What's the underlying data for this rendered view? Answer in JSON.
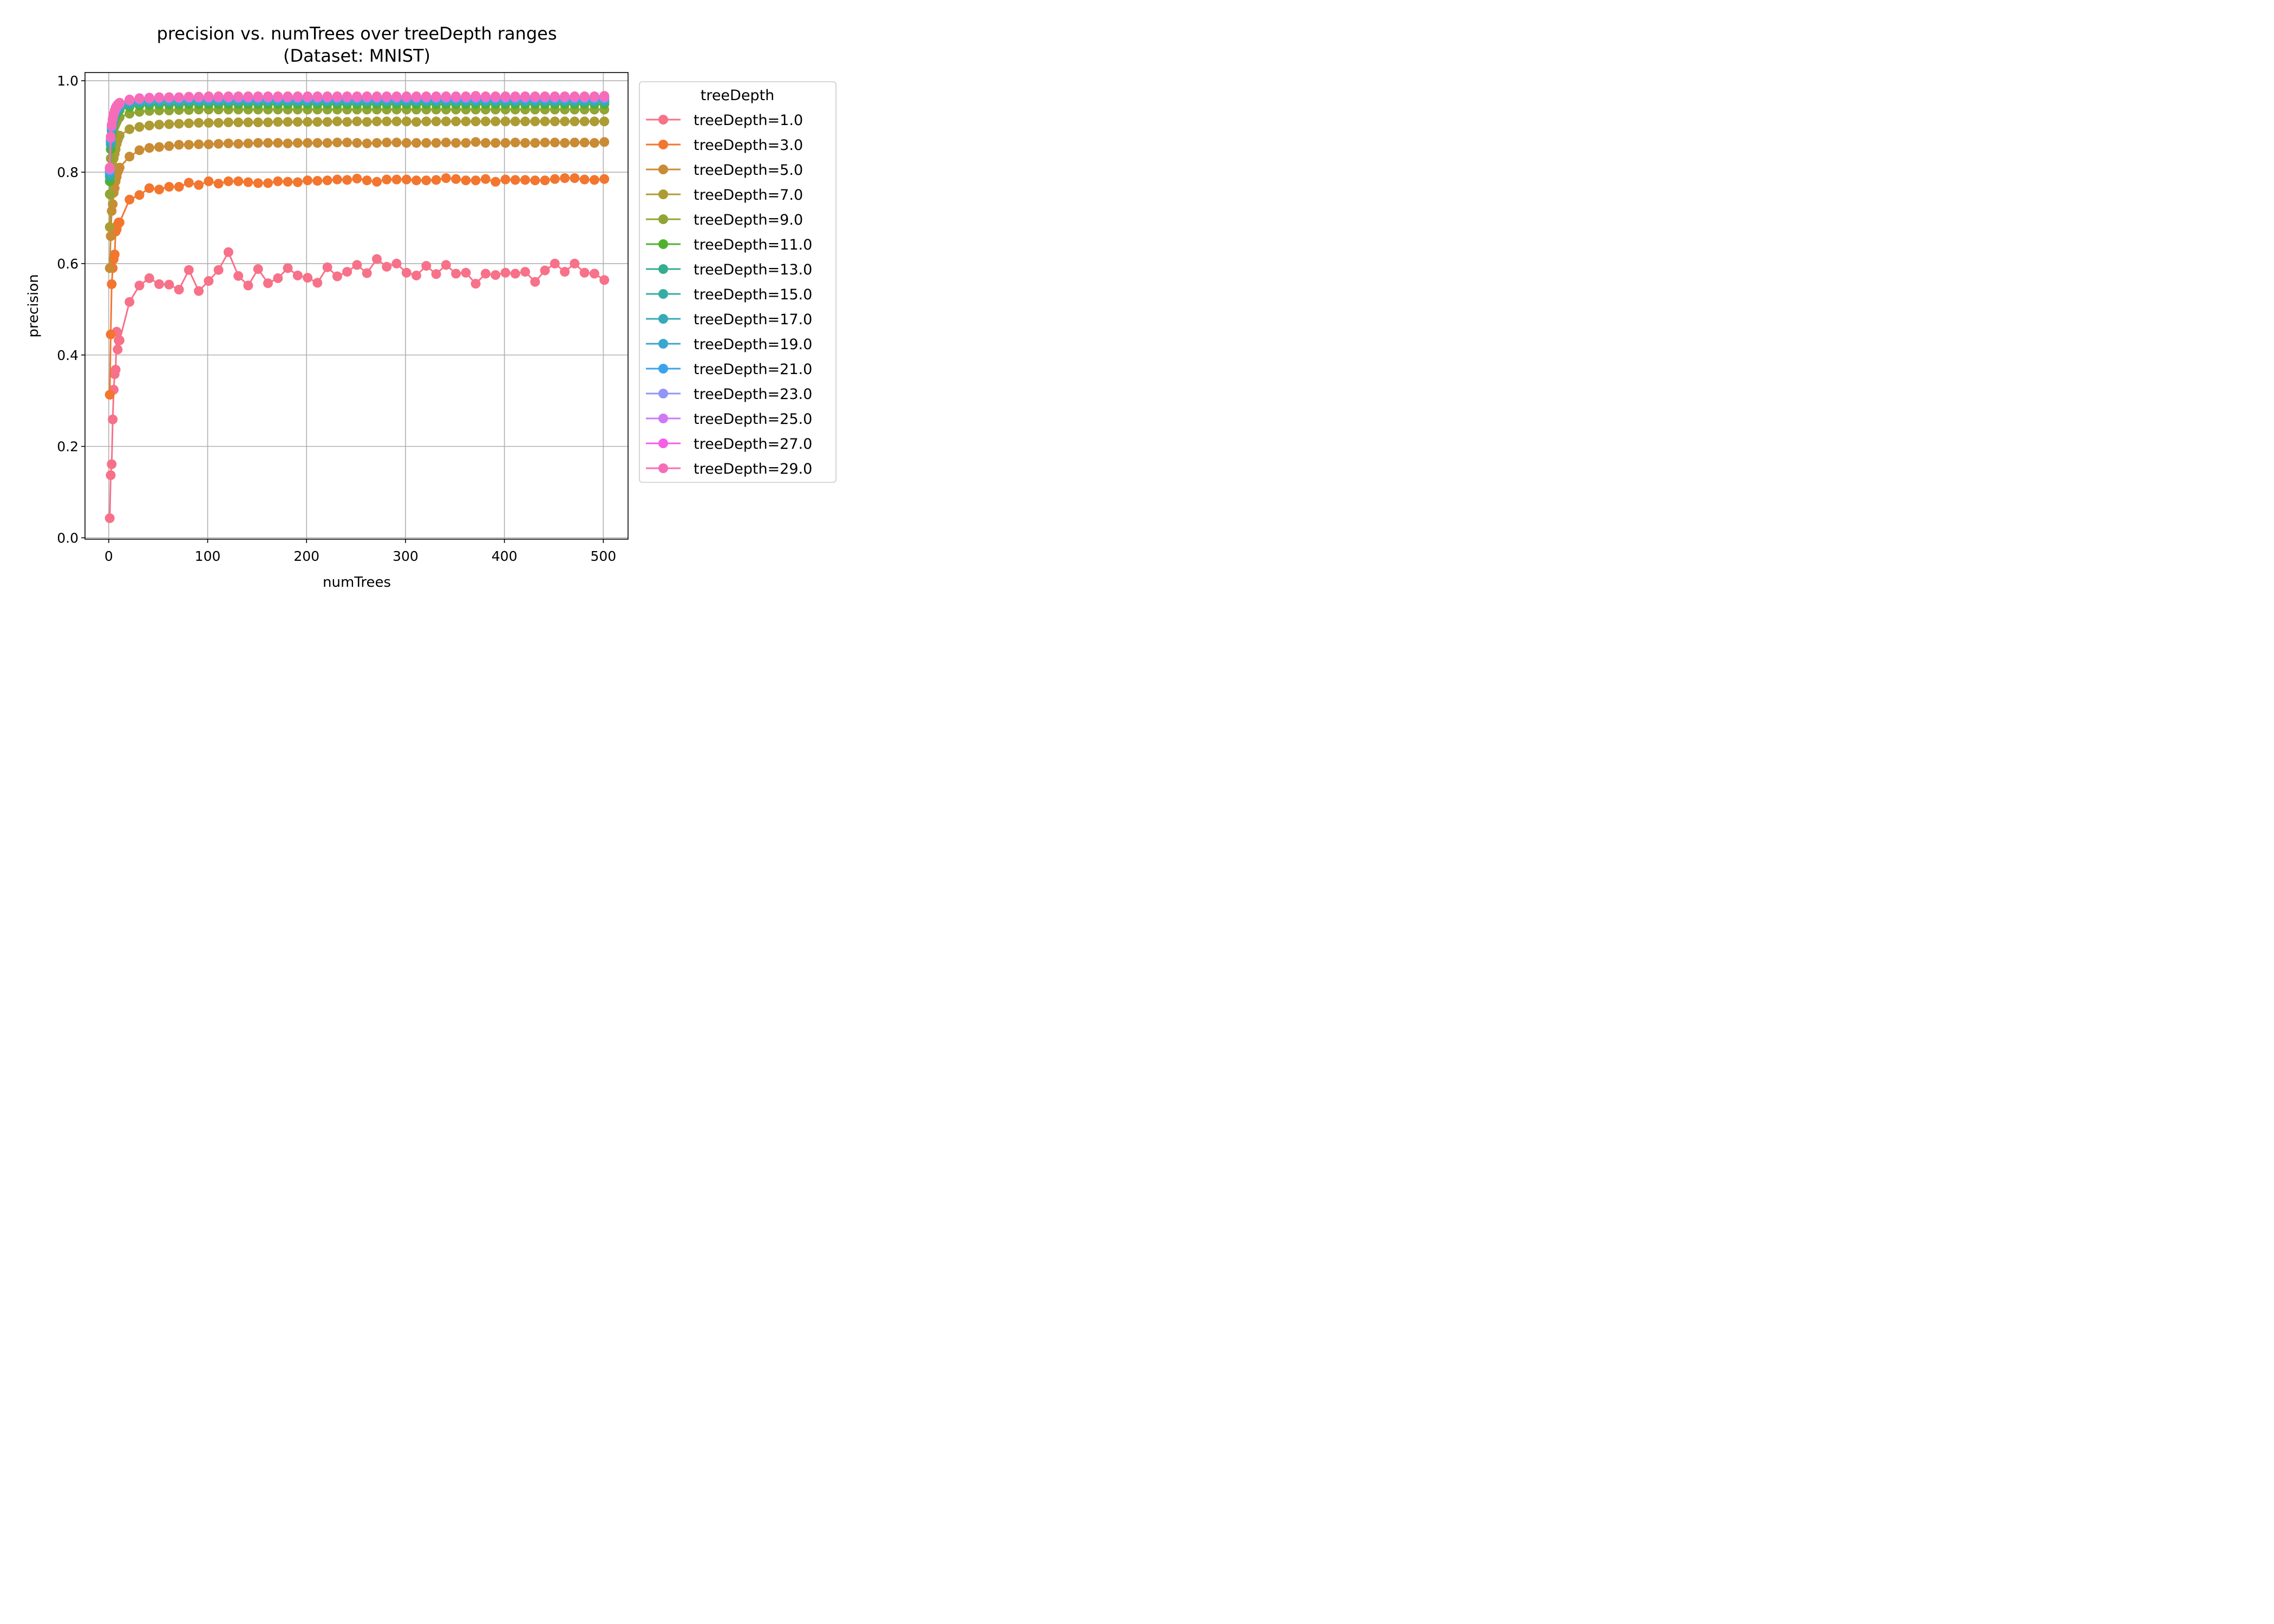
{
  "chart_data": {
    "type": "line",
    "title": "precision vs. numTrees over treeDepth ranges",
    "subtitle": "(Dataset: MNIST)",
    "xlabel": "numTrees",
    "ylabel": "precision",
    "xlim": [
      -24,
      525
    ],
    "ylim": [
      -0.003,
      1.018
    ],
    "xticks": [
      0,
      100,
      200,
      300,
      400,
      500
    ],
    "yticks": [
      0.0,
      0.2,
      0.4,
      0.6,
      0.8,
      1.0
    ],
    "xtick_labels": [
      "0",
      "100",
      "200",
      "300",
      "400",
      "500"
    ],
    "ytick_labels": [
      "0.0",
      "0.2",
      "0.4",
      "0.6",
      "0.8",
      "1.0"
    ],
    "grid": true,
    "legend_title": "treeDepth",
    "legend_position": "outside right",
    "x": [
      1,
      2,
      3,
      4,
      5,
      6,
      7,
      8,
      9,
      10,
      11,
      21,
      31,
      41,
      51,
      61,
      71,
      81,
      91,
      101,
      111,
      121,
      131,
      141,
      151,
      161,
      171,
      181,
      191,
      201,
      211,
      221,
      231,
      241,
      251,
      261,
      271,
      281,
      291,
      301,
      311,
      321,
      331,
      341,
      351,
      361,
      371,
      381,
      391,
      401,
      411,
      421,
      431,
      441,
      451,
      461,
      471,
      481,
      491,
      501
    ],
    "series": [
      {
        "name": "treeDepth=1.0",
        "color": "#f77189",
        "values": [
          0.043,
          0.137,
          0.161,
          0.259,
          0.324,
          0.358,
          0.368,
          0.451,
          0.412,
          0.432,
          0.432,
          0.516,
          0.552,
          0.568,
          0.555,
          0.554,
          0.543,
          0.586,
          0.54,
          0.562,
          0.586,
          0.625,
          0.573,
          0.552,
          0.588,
          0.557,
          0.568,
          0.59,
          0.574,
          0.569,
          0.558,
          0.592,
          0.572,
          0.582,
          0.597,
          0.579,
          0.61,
          0.593,
          0.6,
          0.58,
          0.574,
          0.595,
          0.577,
          0.597,
          0.578,
          0.58,
          0.556,
          0.578,
          0.575,
          0.58,
          0.578,
          0.582,
          0.56,
          0.585,
          0.6,
          0.582,
          0.6,
          0.58,
          0.578,
          0.564
        ]
      },
      {
        "name": "treeDepth=3.0",
        "color": "#f3762f",
        "values": [
          0.313,
          0.445,
          0.555,
          0.59,
          0.61,
          0.62,
          0.67,
          0.675,
          0.685,
          0.69,
          0.69,
          0.74,
          0.75,
          0.765,
          0.762,
          0.768,
          0.768,
          0.777,
          0.772,
          0.78,
          0.775,
          0.78,
          0.78,
          0.778,
          0.776,
          0.776,
          0.78,
          0.779,
          0.778,
          0.782,
          0.781,
          0.782,
          0.784,
          0.783,
          0.786,
          0.782,
          0.779,
          0.784,
          0.784,
          0.784,
          0.782,
          0.782,
          0.783,
          0.787,
          0.785,
          0.782,
          0.782,
          0.785,
          0.779,
          0.784,
          0.783,
          0.783,
          0.782,
          0.782,
          0.785,
          0.787,
          0.787,
          0.784,
          0.783,
          0.785
        ]
      },
      {
        "name": "treeDepth=5.0",
        "color": "#c98c34",
        "values": [
          0.59,
          0.66,
          0.715,
          0.73,
          0.755,
          0.765,
          0.78,
          0.79,
          0.8,
          0.805,
          0.81,
          0.834,
          0.848,
          0.853,
          0.855,
          0.857,
          0.86,
          0.86,
          0.861,
          0.861,
          0.862,
          0.863,
          0.862,
          0.863,
          0.864,
          0.864,
          0.864,
          0.863,
          0.864,
          0.864,
          0.864,
          0.864,
          0.865,
          0.865,
          0.864,
          0.863,
          0.864,
          0.865,
          0.865,
          0.864,
          0.864,
          0.864,
          0.864,
          0.865,
          0.864,
          0.864,
          0.866,
          0.864,
          0.864,
          0.864,
          0.865,
          0.864,
          0.864,
          0.865,
          0.865,
          0.864,
          0.865,
          0.865,
          0.864,
          0.866
        ]
      },
      {
        "name": "treeDepth=7.0",
        "color": "#ad9c34",
        "values": [
          0.68,
          0.75,
          0.79,
          0.815,
          0.83,
          0.84,
          0.85,
          0.862,
          0.87,
          0.876,
          0.88,
          0.894,
          0.899,
          0.902,
          0.904,
          0.905,
          0.906,
          0.907,
          0.908,
          0.908,
          0.908,
          0.909,
          0.909,
          0.909,
          0.909,
          0.909,
          0.91,
          0.91,
          0.91,
          0.91,
          0.91,
          0.91,
          0.911,
          0.91,
          0.911,
          0.91,
          0.911,
          0.911,
          0.911,
          0.911,
          0.91,
          0.911,
          0.911,
          0.911,
          0.911,
          0.911,
          0.911,
          0.911,
          0.911,
          0.911,
          0.911,
          0.911,
          0.911,
          0.911,
          0.911,
          0.911,
          0.911,
          0.911,
          0.911,
          0.911
        ]
      },
      {
        "name": "treeDepth=9.0",
        "color": "#90a534",
        "values": [
          0.752,
          0.83,
          0.86,
          0.88,
          0.89,
          0.9,
          0.905,
          0.91,
          0.915,
          0.918,
          0.92,
          0.928,
          0.932,
          0.934,
          0.935,
          0.935,
          0.936,
          0.936,
          0.937,
          0.937,
          0.937,
          0.937,
          0.937,
          0.937,
          0.937,
          0.937,
          0.937,
          0.937,
          0.937,
          0.937,
          0.937,
          0.937,
          0.937,
          0.937,
          0.937,
          0.937,
          0.937,
          0.937,
          0.937,
          0.937,
          0.937,
          0.937,
          0.937,
          0.937,
          0.937,
          0.937,
          0.937,
          0.937,
          0.937,
          0.937,
          0.937,
          0.937,
          0.937,
          0.937,
          0.937,
          0.937,
          0.937,
          0.937,
          0.937,
          0.937
        ]
      },
      {
        "name": "treeDepth=11.0",
        "color": "#50b131",
        "values": [
          0.78,
          0.85,
          0.88,
          0.9,
          0.91,
          0.918,
          0.924,
          0.928,
          0.931,
          0.934,
          0.936,
          0.943,
          0.946,
          0.947,
          0.948,
          0.948,
          0.948,
          0.949,
          0.949,
          0.949,
          0.949,
          0.949,
          0.949,
          0.949,
          0.949,
          0.949,
          0.949,
          0.949,
          0.949,
          0.949,
          0.949,
          0.949,
          0.949,
          0.949,
          0.949,
          0.949,
          0.949,
          0.949,
          0.949,
          0.949,
          0.949,
          0.949,
          0.949,
          0.949,
          0.949,
          0.949,
          0.949,
          0.949,
          0.949,
          0.949,
          0.949,
          0.949,
          0.949,
          0.949,
          0.949,
          0.949,
          0.949,
          0.949,
          0.949,
          0.949
        ]
      },
      {
        "name": "treeDepth=13.0",
        "color": "#34ae91",
        "values": [
          0.79,
          0.86,
          0.89,
          0.905,
          0.915,
          0.922,
          0.928,
          0.932,
          0.935,
          0.938,
          0.94,
          0.948,
          0.951,
          0.952,
          0.953,
          0.953,
          0.953,
          0.954,
          0.954,
          0.954,
          0.954,
          0.954,
          0.954,
          0.954,
          0.954,
          0.954,
          0.954,
          0.954,
          0.954,
          0.954,
          0.954,
          0.954,
          0.954,
          0.954,
          0.954,
          0.954,
          0.954,
          0.954,
          0.954,
          0.954,
          0.954,
          0.954,
          0.954,
          0.954,
          0.954,
          0.954,
          0.954,
          0.954,
          0.954,
          0.954,
          0.954,
          0.954,
          0.954,
          0.954,
          0.954,
          0.954,
          0.954,
          0.954,
          0.954,
          0.954
        ]
      },
      {
        "name": "treeDepth=15.0",
        "color": "#36ada4",
        "values": [
          0.795,
          0.865,
          0.893,
          0.908,
          0.918,
          0.925,
          0.931,
          0.935,
          0.938,
          0.94,
          0.942,
          0.95,
          0.953,
          0.954,
          0.955,
          0.955,
          0.955,
          0.956,
          0.956,
          0.956,
          0.956,
          0.956,
          0.956,
          0.956,
          0.956,
          0.956,
          0.956,
          0.956,
          0.956,
          0.956,
          0.956,
          0.956,
          0.956,
          0.956,
          0.956,
          0.956,
          0.956,
          0.956,
          0.956,
          0.956,
          0.956,
          0.956,
          0.956,
          0.956,
          0.956,
          0.956,
          0.956,
          0.956,
          0.956,
          0.956,
          0.956,
          0.956,
          0.956,
          0.956,
          0.956,
          0.956,
          0.956,
          0.956,
          0.956,
          0.956
        ]
      },
      {
        "name": "treeDepth=17.0",
        "color": "#38aab7",
        "values": [
          0.8,
          0.868,
          0.896,
          0.91,
          0.92,
          0.927,
          0.933,
          0.937,
          0.94,
          0.942,
          0.944,
          0.952,
          0.955,
          0.956,
          0.957,
          0.957,
          0.957,
          0.958,
          0.958,
          0.958,
          0.958,
          0.958,
          0.958,
          0.958,
          0.958,
          0.958,
          0.958,
          0.958,
          0.958,
          0.958,
          0.958,
          0.958,
          0.958,
          0.958,
          0.958,
          0.958,
          0.958,
          0.958,
          0.958,
          0.958,
          0.958,
          0.958,
          0.958,
          0.958,
          0.958,
          0.958,
          0.958,
          0.958,
          0.958,
          0.958,
          0.958,
          0.958,
          0.958,
          0.958,
          0.958,
          0.958,
          0.958,
          0.958,
          0.958,
          0.958
        ]
      },
      {
        "name": "treeDepth=19.0",
        "color": "#39a7d0",
        "values": [
          0.8,
          0.87,
          0.898,
          0.912,
          0.922,
          0.929,
          0.935,
          0.939,
          0.942,
          0.944,
          0.946,
          0.954,
          0.957,
          0.958,
          0.959,
          0.959,
          0.959,
          0.96,
          0.96,
          0.96,
          0.96,
          0.96,
          0.96,
          0.96,
          0.96,
          0.96,
          0.96,
          0.96,
          0.96,
          0.96,
          0.96,
          0.96,
          0.96,
          0.96,
          0.96,
          0.96,
          0.96,
          0.96,
          0.96,
          0.96,
          0.96,
          0.96,
          0.96,
          0.96,
          0.96,
          0.96,
          0.96,
          0.96,
          0.96,
          0.96,
          0.96,
          0.96,
          0.96,
          0.96,
          0.96,
          0.96,
          0.96,
          0.96,
          0.96,
          0.96
        ]
      },
      {
        "name": "treeDepth=21.0",
        "color": "#3ba3ec",
        "values": [
          0.805,
          0.875,
          0.9,
          0.914,
          0.924,
          0.931,
          0.937,
          0.941,
          0.944,
          0.946,
          0.948,
          0.956,
          0.959,
          0.96,
          0.961,
          0.961,
          0.961,
          0.962,
          0.962,
          0.962,
          0.962,
          0.962,
          0.962,
          0.962,
          0.962,
          0.962,
          0.962,
          0.962,
          0.962,
          0.962,
          0.962,
          0.962,
          0.962,
          0.962,
          0.962,
          0.962,
          0.962,
          0.962,
          0.962,
          0.962,
          0.962,
          0.962,
          0.962,
          0.962,
          0.962,
          0.962,
          0.962,
          0.962,
          0.962,
          0.962,
          0.962,
          0.962,
          0.962,
          0.962,
          0.962,
          0.962,
          0.962,
          0.962,
          0.962,
          0.962
        ]
      },
      {
        "name": "treeDepth=23.0",
        "color": "#9295f4",
        "values": [
          0.805,
          0.875,
          0.9,
          0.915,
          0.925,
          0.932,
          0.938,
          0.942,
          0.945,
          0.947,
          0.949,
          0.957,
          0.96,
          0.961,
          0.962,
          0.962,
          0.962,
          0.963,
          0.963,
          0.963,
          0.963,
          0.963,
          0.963,
          0.963,
          0.963,
          0.963,
          0.963,
          0.963,
          0.963,
          0.963,
          0.963,
          0.963,
          0.963,
          0.963,
          0.963,
          0.963,
          0.963,
          0.963,
          0.963,
          0.963,
          0.963,
          0.963,
          0.963,
          0.963,
          0.963,
          0.963,
          0.963,
          0.963,
          0.963,
          0.963,
          0.963,
          0.963,
          0.963,
          0.963,
          0.963,
          0.963,
          0.963,
          0.963,
          0.963,
          0.963
        ]
      },
      {
        "name": "treeDepth=25.0",
        "color": "#ce79f4",
        "values": [
          0.808,
          0.876,
          0.902,
          0.916,
          0.926,
          0.933,
          0.939,
          0.943,
          0.946,
          0.948,
          0.95,
          0.958,
          0.961,
          0.962,
          0.963,
          0.963,
          0.963,
          0.964,
          0.964,
          0.964,
          0.964,
          0.964,
          0.964,
          0.964,
          0.964,
          0.964,
          0.964,
          0.964,
          0.964,
          0.964,
          0.964,
          0.964,
          0.964,
          0.964,
          0.964,
          0.964,
          0.964,
          0.964,
          0.964,
          0.964,
          0.964,
          0.964,
          0.964,
          0.964,
          0.964,
          0.964,
          0.964,
          0.964,
          0.964,
          0.964,
          0.964,
          0.964,
          0.964,
          0.964,
          0.964,
          0.964,
          0.964,
          0.964,
          0.964,
          0.964
        ]
      },
      {
        "name": "treeDepth=27.0",
        "color": "#f45fe6",
        "values": [
          0.81,
          0.877,
          0.903,
          0.917,
          0.927,
          0.934,
          0.94,
          0.944,
          0.947,
          0.949,
          0.951,
          0.959,
          0.962,
          0.963,
          0.964,
          0.964,
          0.964,
          0.965,
          0.965,
          0.965,
          0.965,
          0.965,
          0.965,
          0.965,
          0.965,
          0.965,
          0.965,
          0.965,
          0.965,
          0.965,
          0.965,
          0.965,
          0.965,
          0.965,
          0.965,
          0.965,
          0.965,
          0.965,
          0.965,
          0.965,
          0.965,
          0.965,
          0.965,
          0.965,
          0.965,
          0.965,
          0.965,
          0.965,
          0.965,
          0.965,
          0.965,
          0.965,
          0.965,
          0.965,
          0.965,
          0.965,
          0.965,
          0.965,
          0.965,
          0.965
        ]
      },
      {
        "name": "treeDepth=29.0",
        "color": "#f66cb8",
        "values": [
          0.81,
          0.878,
          0.904,
          0.918,
          0.928,
          0.935,
          0.941,
          0.945,
          0.948,
          0.95,
          0.952,
          0.958,
          0.961,
          0.962,
          0.963,
          0.964,
          0.964,
          0.965,
          0.965,
          0.966,
          0.966,
          0.966,
          0.966,
          0.966,
          0.966,
          0.966,
          0.966,
          0.966,
          0.966,
          0.966,
          0.966,
          0.966,
          0.966,
          0.966,
          0.966,
          0.966,
          0.966,
          0.966,
          0.966,
          0.966,
          0.966,
          0.966,
          0.966,
          0.966,
          0.966,
          0.966,
          0.967,
          0.966,
          0.966,
          0.966,
          0.966,
          0.966,
          0.966,
          0.966,
          0.966,
          0.966,
          0.966,
          0.966,
          0.966,
          0.967
        ]
      }
    ]
  }
}
